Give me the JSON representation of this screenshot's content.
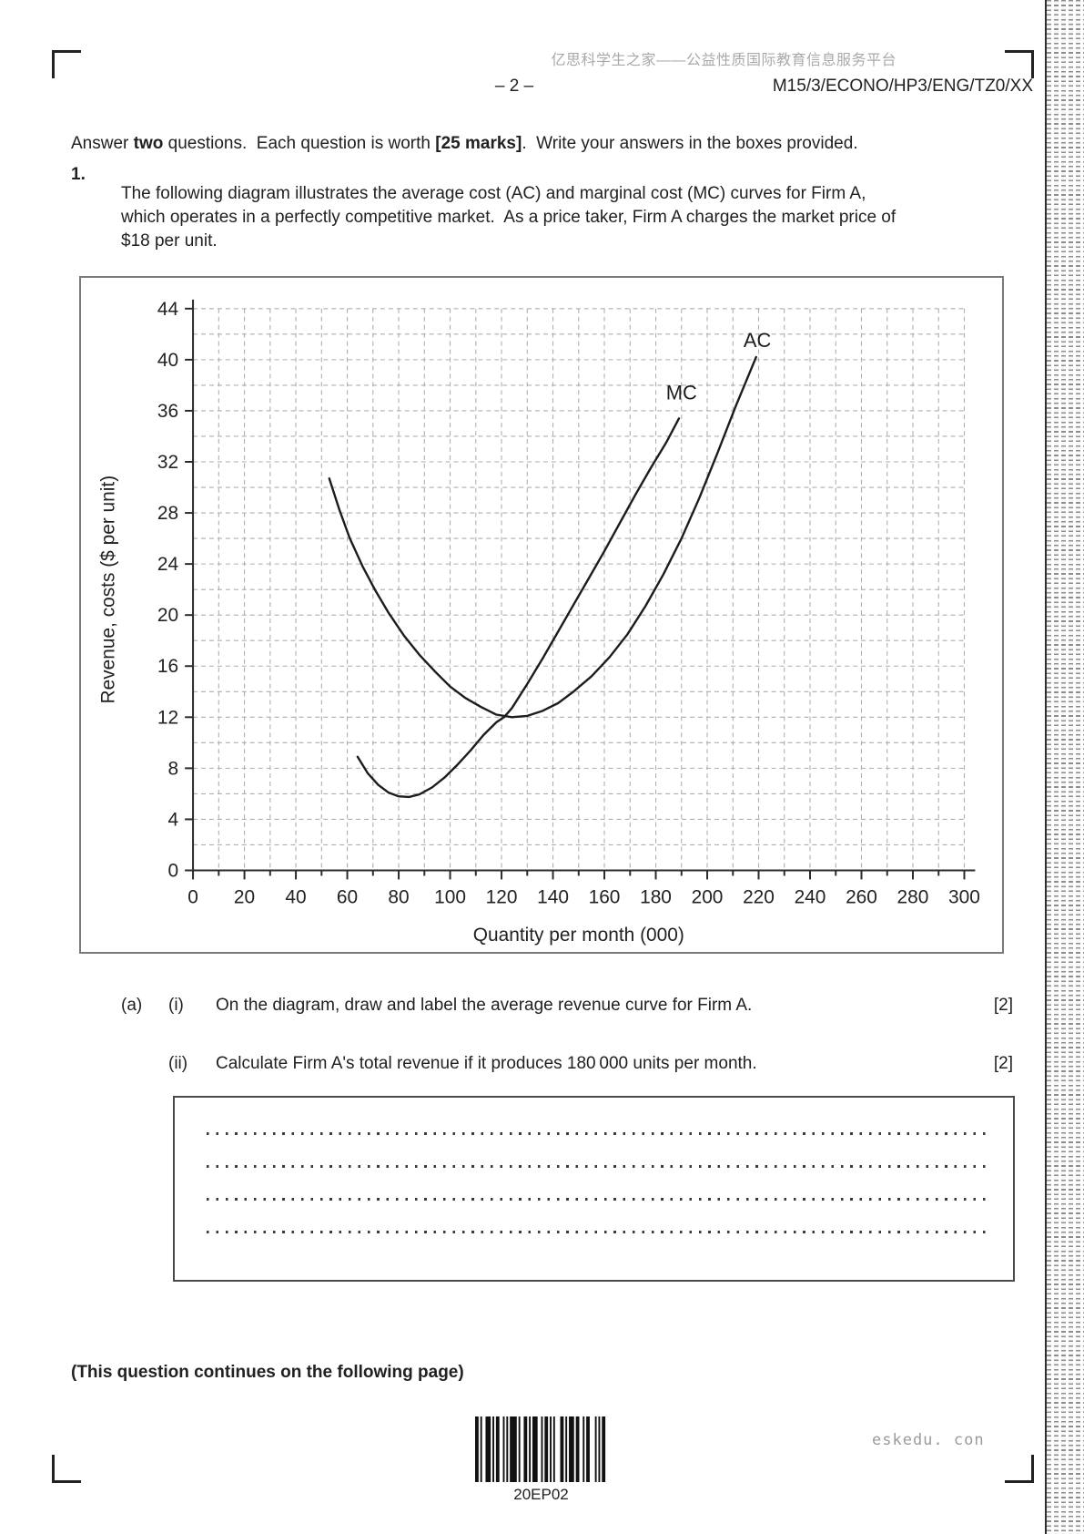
{
  "header": {
    "site_watermark_cn": "亿思科学生之家——公益性质国际教育信息服务平台",
    "page_number": "– 2 –",
    "exam_code": "M15/3/ECONO/HP3/ENG/TZ0/XX"
  },
  "instructions": {
    "seg1": "Answer ",
    "seg2": "two",
    "seg3": " questions.  Each question is worth ",
    "seg4": "[25 marks]",
    "seg5": ".  Write your answers in the boxes provided."
  },
  "question": {
    "number": "1.",
    "text": "The following diagram illustrates the average cost (AC) and marginal cost (MC) curves for Firm A, which operates in a perfectly competitive market.  As a price taker, Firm A charges the market price of $18 per unit."
  },
  "parts": [
    {
      "part": "(a)",
      "item": "(i)",
      "text": "On the diagram, draw and label the average revenue curve for Firm A.",
      "marks": "[2]"
    },
    {
      "part": "",
      "item": "(ii)",
      "text": "Calculate Firm A's total revenue if it produces 180 000 units per month.",
      "marks": "[2]"
    }
  ],
  "answer_box": {
    "line_count": 4
  },
  "footer": {
    "continuation": "(This question continues on the following page)",
    "barcode_label": "20EP02",
    "site_watermark": "eskedu. con"
  },
  "chart_data": {
    "type": "line",
    "title": "",
    "xlabel": "Quantity per month (000)",
    "ylabel": "Revenue, costs ($ per unit)",
    "xlim": [
      0,
      300
    ],
    "ylim": [
      0,
      44
    ],
    "x_major_tick": 20,
    "x_minor_tick": 10,
    "y_major_tick": 4,
    "y_minor_tick": 2,
    "grid": "dashed",
    "legend_position": "inline-curve-labels",
    "series": [
      {
        "name": "AC",
        "label_at": [
          219.5,
          41.0
        ],
        "points": [
          [
            53,
            30.7
          ],
          [
            57,
            28.2
          ],
          [
            61,
            26.0
          ],
          [
            66,
            23.8
          ],
          [
            71,
            21.9
          ],
          [
            76,
            20.2
          ],
          [
            82,
            18.4
          ],
          [
            88,
            16.9
          ],
          [
            94,
            15.6
          ],
          [
            100,
            14.4
          ],
          [
            106,
            13.5
          ],
          [
            112,
            12.8
          ],
          [
            118,
            12.2
          ],
          [
            124,
            12.0
          ],
          [
            130,
            12.1
          ],
          [
            136,
            12.5
          ],
          [
            142,
            13.1
          ],
          [
            148,
            14.0
          ],
          [
            155,
            15.2
          ],
          [
            162,
            16.7
          ],
          [
            169,
            18.5
          ],
          [
            176,
            20.7
          ],
          [
            183,
            23.2
          ],
          [
            190,
            26.0
          ],
          [
            197,
            29.2
          ],
          [
            204,
            32.7
          ],
          [
            211,
            36.3
          ],
          [
            219,
            40.2
          ]
        ]
      },
      {
        "name": "MC",
        "label_at": [
          190,
          36.9
        ],
        "points": [
          [
            64,
            8.9
          ],
          [
            68,
            7.6
          ],
          [
            72,
            6.7
          ],
          [
            76,
            6.1
          ],
          [
            80,
            5.8
          ],
          [
            84,
            5.75
          ],
          [
            88,
            5.95
          ],
          [
            93,
            6.5
          ],
          [
            98,
            7.3
          ],
          [
            103,
            8.3
          ],
          [
            108,
            9.4
          ],
          [
            113,
            10.6
          ],
          [
            118,
            11.6
          ],
          [
            121,
            12.0
          ],
          [
            124,
            12.7
          ],
          [
            130,
            14.6
          ],
          [
            136,
            16.6
          ],
          [
            142,
            18.7
          ],
          [
            148,
            20.8
          ],
          [
            154,
            22.9
          ],
          [
            160,
            25.0
          ],
          [
            166,
            27.2
          ],
          [
            172,
            29.4
          ],
          [
            178,
            31.5
          ],
          [
            184,
            33.5
          ],
          [
            189,
            35.4
          ]
        ]
      }
    ]
  }
}
